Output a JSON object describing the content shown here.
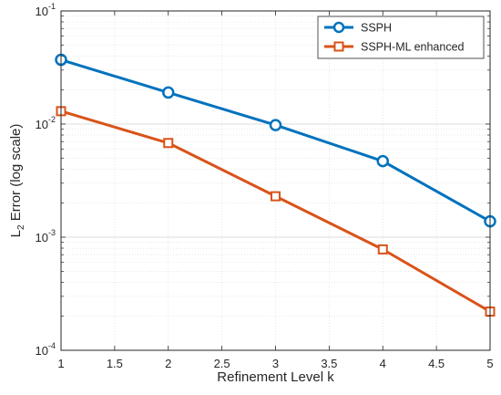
{
  "chart_data": {
    "type": "line",
    "title": "",
    "xlabel": "Refinement Level k",
    "ylabel_base": "L",
    "ylabel_sub": "2",
    "ylabel_rest": " Error (log scale)",
    "xlim": [
      1,
      5
    ],
    "ylim": [
      0.0001,
      0.1
    ],
    "yscale": "log",
    "grid": true,
    "minor_grid": true,
    "legend_position": "top-right",
    "x_ticks": [
      {
        "value": 1,
        "label": "1"
      },
      {
        "value": 1.5,
        "label": "1.5"
      },
      {
        "value": 2,
        "label": "2"
      },
      {
        "value": 2.5,
        "label": "2.5"
      },
      {
        "value": 3,
        "label": "3"
      },
      {
        "value": 3.5,
        "label": "3.5"
      },
      {
        "value": 4,
        "label": "4"
      },
      {
        "value": 4.5,
        "label": "4.5"
      },
      {
        "value": 5,
        "label": "5"
      }
    ],
    "y_ticks": [
      {
        "value": 0.0001,
        "base": "10",
        "exp": "-4"
      },
      {
        "value": 0.001,
        "base": "10",
        "exp": "-3"
      },
      {
        "value": 0.01,
        "base": "10",
        "exp": "-2"
      },
      {
        "value": 0.1,
        "base": "10",
        "exp": "-1"
      }
    ],
    "x": [
      1,
      2,
      3,
      4,
      5
    ],
    "series": [
      {
        "name": "SSPH",
        "values": [
          0.037,
          0.019,
          0.0098,
          0.0047,
          0.00138
        ],
        "color": "#0072BD",
        "marker": "circle"
      },
      {
        "name": "SSPH-ML enhanced",
        "values": [
          0.013,
          0.0068,
          0.0023,
          0.00078,
          0.00022
        ],
        "color": "#D95319",
        "marker": "square"
      }
    ]
  }
}
